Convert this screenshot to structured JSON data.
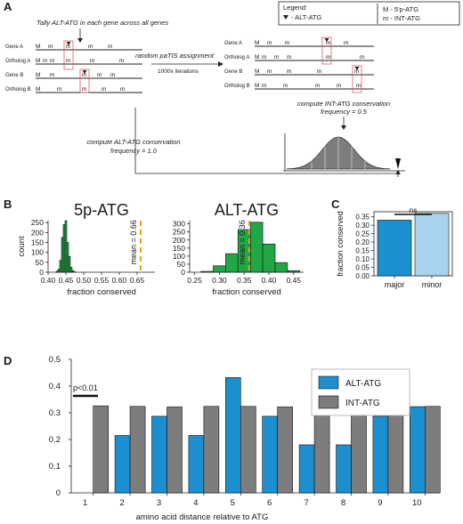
{
  "panel_a": {
    "label": "A",
    "legend_title": "Legend:",
    "legend_alt": "- ALT-ATG",
    "legend_M": "M - 5'p-ATG",
    "legend_m": "m - INT-ATG",
    "tally": "Tally ALT-ATG in each gene across all genes",
    "random_line1": "random paTIS assignment",
    "random_line2": "1000x iterations",
    "compute_int_1": "compute INT-ATG conservation",
    "compute_int_2": "frequency = 0.5",
    "compute_alt_1": "compute ALT-ATG conservation",
    "compute_alt_2": "frequency = 1.0",
    "gene_names": [
      "Gene A",
      "Ortholog A",
      "Gene B",
      "Ortholog B"
    ],
    "marker_M": "M",
    "marker_m": "m"
  },
  "panel_b": {
    "label": "B",
    "chart_data": [
      {
        "type": "bar",
        "title": "5p-ATG",
        "xlabel": "fraction conserved",
        "ylabel": "count",
        "xlim": [
          0.4,
          0.7
        ],
        "ylim": [
          0,
          260
        ],
        "xticks": [
          "0.40",
          "0.45",
          "0.50",
          "0.55",
          "0.60",
          "0.65"
        ],
        "yticks": [
          "0",
          "50",
          "100",
          "150",
          "200",
          "250"
        ],
        "bins": [
          0.425,
          0.43,
          0.435,
          0.44,
          0.445,
          0.45,
          0.455,
          0.46,
          0.465,
          0.47,
          0.475
        ],
        "values": [
          5,
          15,
          60,
          175,
          240,
          260,
          150,
          80,
          25,
          8,
          2
        ],
        "mean_line": 0.66,
        "mean_label": "mean = 0.66"
      },
      {
        "type": "bar",
        "title": "ALT-ATG",
        "xlabel": "fraction conserved",
        "ylabel": "",
        "xlim": [
          0.24,
          0.47
        ],
        "ylim": [
          0,
          320
        ],
        "xticks": [
          "0.25",
          "0.30",
          "0.35",
          "0.40",
          "0.45"
        ],
        "yticks": [
          "0",
          "50",
          "100",
          "150",
          "200",
          "250",
          "300"
        ],
        "bins": [
          0.275,
          0.3,
          0.325,
          0.35,
          0.375,
          0.4,
          0.425,
          0.45
        ],
        "values": [
          5,
          40,
          115,
          265,
          310,
          175,
          60,
          10
        ],
        "mean_line": 0.36,
        "mean_label": "mean = 0.36"
      }
    ]
  },
  "panel_c": {
    "label": "C",
    "chart_data": {
      "type": "bar",
      "title": "",
      "xlabel": "",
      "ylabel": "fraction conserved",
      "categories": [
        "major",
        "minor"
      ],
      "values": [
        0.33,
        0.37
      ],
      "ylim": [
        0,
        0.38
      ],
      "yticks": [
        "0.00",
        "0.05",
        "0.10",
        "0.15",
        "0.20",
        "0.25",
        "0.30",
        "0.35"
      ],
      "colors": [
        "#1b8fcf",
        "#a8d2ef"
      ],
      "annotation": "ns"
    }
  },
  "panel_d": {
    "label": "D",
    "chart_data": {
      "type": "bar",
      "title": "",
      "xlabel": "amino acid distance relative to ATG",
      "ylabel": "",
      "categories": [
        "1",
        "2",
        "3",
        "4",
        "5",
        "6",
        "7",
        "8",
        "9",
        "10"
      ],
      "series": [
        {
          "name": "ALT-ATG",
          "color": "#1b8fcf",
          "values": [
            0.0,
            0.215,
            0.287,
            0.215,
            0.432,
            0.287,
            0.18,
            0.18,
            0.287,
            0.323
          ]
        },
        {
          "name": "INT-ATG",
          "color": "#7d7d7d",
          "values": [
            0.326,
            0.324,
            0.322,
            0.324,
            0.324,
            0.322,
            0.322,
            0.322,
            0.324,
            0.324
          ]
        }
      ],
      "ylim": [
        0,
        0.5
      ],
      "yticks": [
        "0",
        "0.1",
        "0.2",
        "0.3",
        "0.4",
        "0.5"
      ],
      "annotation": "p<0.01",
      "legend_position": "top-right"
    }
  }
}
